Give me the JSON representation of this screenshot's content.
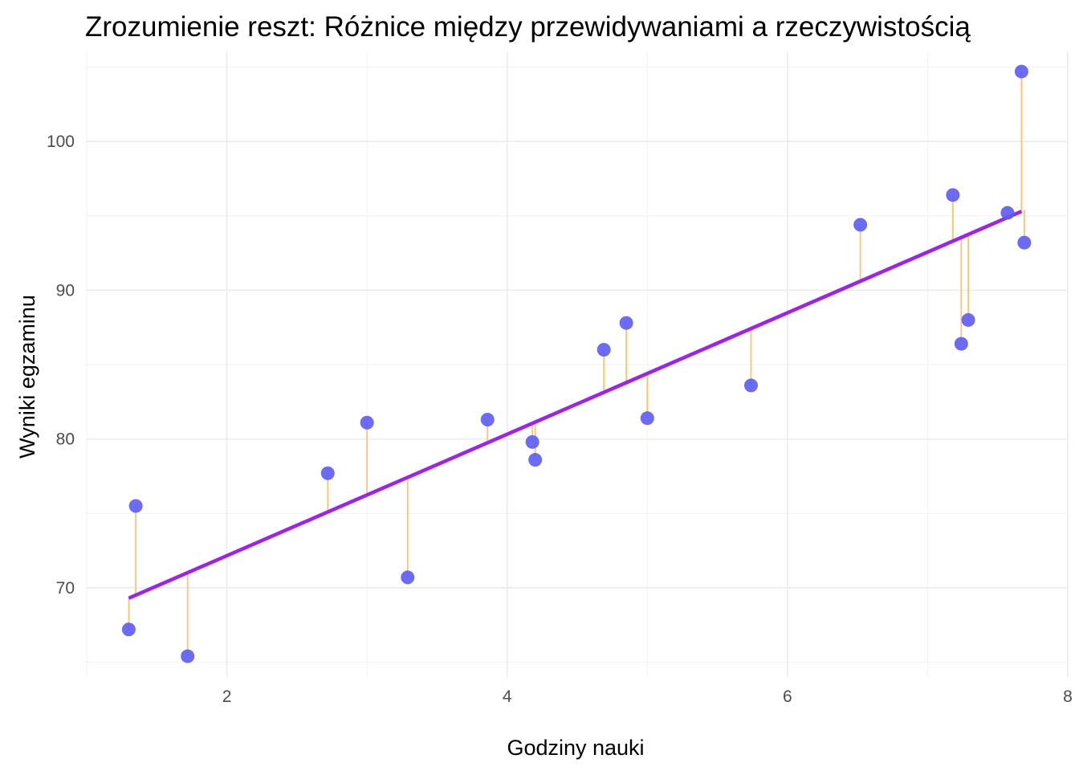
{
  "chart_data": {
    "type": "scatter",
    "title": "Zrozumienie reszt: Różnice między przewidywaniami a rzeczywistością",
    "xlabel": "Godziny nauki",
    "ylabel": "Wyniki egzaminu",
    "xlim": [
      1.0,
      8.0
    ],
    "ylim": [
      64.0,
      106.0
    ],
    "xticks": [
      2,
      4,
      6,
      8
    ],
    "yticks": [
      70,
      80,
      90,
      100
    ],
    "grid": true,
    "colors": {
      "points": "#5b5bf5",
      "regression_line": "#a020f0",
      "residuals": "#ffc46b"
    },
    "regression_line": {
      "x": [
        1.3,
        7.67
      ],
      "y": [
        69.3,
        95.3
      ]
    },
    "points": [
      {
        "x": 1.3,
        "y": 67.2,
        "predicted": 69.3
      },
      {
        "x": 1.35,
        "y": 75.5,
        "predicted": 69.4
      },
      {
        "x": 1.72,
        "y": 65.4,
        "predicted": 70.9
      },
      {
        "x": 2.72,
        "y": 77.7,
        "predicted": 75.0
      },
      {
        "x": 3.0,
        "y": 81.1,
        "predicted": 76.2
      },
      {
        "x": 3.29,
        "y": 70.7,
        "predicted": 77.4
      },
      {
        "x": 3.86,
        "y": 81.3,
        "predicted": 79.7
      },
      {
        "x": 4.18,
        "y": 79.8,
        "predicted": 81.0
      },
      {
        "x": 4.2,
        "y": 78.6,
        "predicted": 81.1
      },
      {
        "x": 4.69,
        "y": 86.0,
        "predicted": 83.1
      },
      {
        "x": 4.85,
        "y": 87.8,
        "predicted": 83.7
      },
      {
        "x": 5.0,
        "y": 81.4,
        "predicted": 84.4
      },
      {
        "x": 5.74,
        "y": 83.6,
        "predicted": 87.4
      },
      {
        "x": 6.52,
        "y": 94.4,
        "predicted": 90.6
      },
      {
        "x": 7.18,
        "y": 96.4,
        "predicted": 93.3
      },
      {
        "x": 7.24,
        "y": 86.4,
        "predicted": 93.5
      },
      {
        "x": 7.29,
        "y": 88.0,
        "predicted": 93.7
      },
      {
        "x": 7.57,
        "y": 95.2,
        "predicted": 94.9
      },
      {
        "x": 7.67,
        "y": 104.7,
        "predicted": 95.3
      },
      {
        "x": 7.69,
        "y": 93.2,
        "predicted": 95.4
      }
    ]
  }
}
